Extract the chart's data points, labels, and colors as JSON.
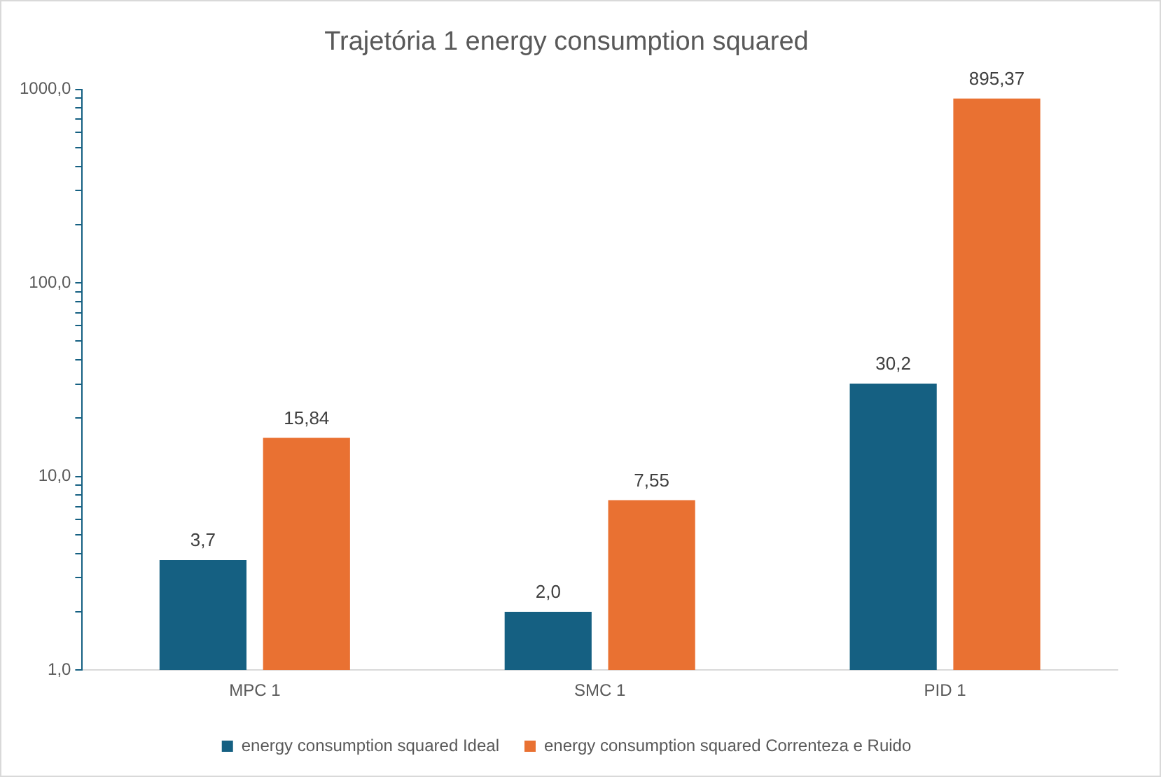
{
  "chart_data": {
    "type": "bar",
    "title": "Trajetória 1 energy consumption squared",
    "categories": [
      "MPC 1",
      "SMC 1",
      "PID 1"
    ],
    "series": [
      {
        "name": "energy consumption squared Ideal",
        "color": "#156082",
        "values": [
          3.7,
          2.0,
          30.2
        ],
        "value_labels": [
          "3,7",
          "2,0",
          "30,2"
        ]
      },
      {
        "name": "energy consumption squared Correnteza e Ruido",
        "color": "#e97132",
        "values": [
          15.84,
          7.55,
          895.37
        ],
        "value_labels": [
          "15,84",
          "7,55",
          "895,37"
        ]
      }
    ],
    "log": true,
    "ylim": [
      1,
      1000
    ],
    "yticks": [
      {
        "value": 1,
        "label": "1,0"
      },
      {
        "value": 2,
        "label": null
      },
      {
        "value": 3,
        "label": null
      },
      {
        "value": 4,
        "label": null
      },
      {
        "value": 5,
        "label": null
      },
      {
        "value": 6,
        "label": null
      },
      {
        "value": 7,
        "label": null
      },
      {
        "value": 8,
        "label": null
      },
      {
        "value": 9,
        "label": null
      },
      {
        "value": 10,
        "label": "10,0"
      },
      {
        "value": 20,
        "label": null
      },
      {
        "value": 30,
        "label": null
      },
      {
        "value": 40,
        "label": null
      },
      {
        "value": 50,
        "label": null
      },
      {
        "value": 60,
        "label": null
      },
      {
        "value": 70,
        "label": null
      },
      {
        "value": 80,
        "label": null
      },
      {
        "value": 90,
        "label": null
      },
      {
        "value": 100,
        "label": "100,0"
      },
      {
        "value": 200,
        "label": null
      },
      {
        "value": 300,
        "label": null
      },
      {
        "value": 400,
        "label": null
      },
      {
        "value": 500,
        "label": null
      },
      {
        "value": 600,
        "label": null
      },
      {
        "value": 700,
        "label": null
      },
      {
        "value": 800,
        "label": null
      },
      {
        "value": 900,
        "label": null
      },
      {
        "value": 1000,
        "label": "1000,0"
      }
    ],
    "grid": false,
    "legend": "bottom"
  }
}
